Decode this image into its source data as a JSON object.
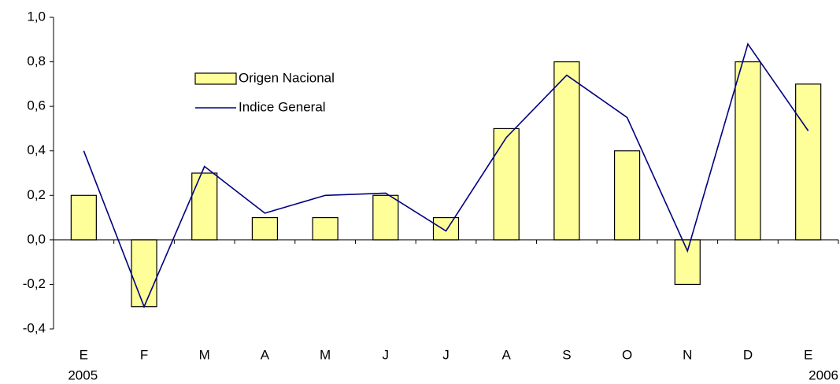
{
  "chart_data": {
    "type": "bar",
    "categories": [
      "E",
      "F",
      "M",
      "A",
      "M",
      "J",
      "J",
      "A",
      "S",
      "O",
      "N",
      "D",
      "E"
    ],
    "category_sublabels": [
      "2005",
      null,
      null,
      null,
      null,
      null,
      null,
      null,
      null,
      null,
      null,
      null,
      "2006"
    ],
    "series": [
      {
        "name": "Origen Nacional",
        "type": "bar",
        "color": "#ffff99",
        "values": [
          0.2,
          -0.3,
          0.3,
          0.1,
          0.1,
          0.2,
          0.1,
          0.5,
          0.8,
          0.4,
          -0.2,
          0.8,
          0.7
        ]
      },
      {
        "name": "Indice General",
        "type": "line",
        "color": "#000080",
        "values": [
          0.4,
          -0.3,
          0.33,
          0.12,
          0.2,
          0.21,
          0.04,
          0.46,
          0.74,
          0.55,
          -0.05,
          0.88,
          0.49
        ]
      }
    ],
    "ylim": [
      -0.4,
      1.0
    ],
    "yticks": [
      {
        "value": -0.4,
        "label": "-0,4"
      },
      {
        "value": -0.2,
        "label": "-0,2"
      },
      {
        "value": 0,
        "label": "0,0"
      },
      {
        "value": 0.2,
        "label": "0,2"
      },
      {
        "value": 0.4,
        "label": "0,4"
      },
      {
        "value": 0.6,
        "label": "0,6"
      },
      {
        "value": 0.8,
        "label": "0,8"
      },
      {
        "value": 1.0,
        "label": "1,0"
      }
    ],
    "grid": false,
    "legend": "upper left"
  }
}
